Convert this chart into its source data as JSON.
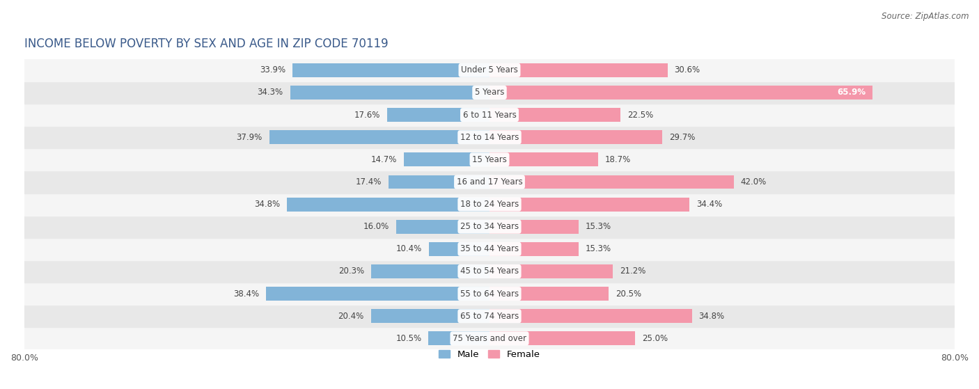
{
  "title": "INCOME BELOW POVERTY BY SEX AND AGE IN ZIP CODE 70119",
  "source": "Source: ZipAtlas.com",
  "categories": [
    "Under 5 Years",
    "5 Years",
    "6 to 11 Years",
    "12 to 14 Years",
    "15 Years",
    "16 and 17 Years",
    "18 to 24 Years",
    "25 to 34 Years",
    "35 to 44 Years",
    "45 to 54 Years",
    "55 to 64 Years",
    "65 to 74 Years",
    "75 Years and over"
  ],
  "male_values": [
    33.9,
    34.3,
    17.6,
    37.9,
    14.7,
    17.4,
    34.8,
    16.0,
    10.4,
    20.3,
    38.4,
    20.4,
    10.5
  ],
  "female_values": [
    30.6,
    65.9,
    22.5,
    29.7,
    18.7,
    42.0,
    34.4,
    15.3,
    15.3,
    21.2,
    20.5,
    34.8,
    25.0
  ],
  "male_color": "#82b4d8",
  "female_color": "#f497aa",
  "male_bright_color": "#4a90d9",
  "female_bright_color": "#f06080",
  "axis_max": 80.0,
  "background_color": "#ffffff",
  "row_bg_even": "#f5f5f5",
  "row_bg_odd": "#e8e8e8",
  "title_fontsize": 12,
  "label_fontsize": 8.5,
  "tick_fontsize": 9,
  "source_fontsize": 8.5,
  "value_fontsize": 8.5
}
